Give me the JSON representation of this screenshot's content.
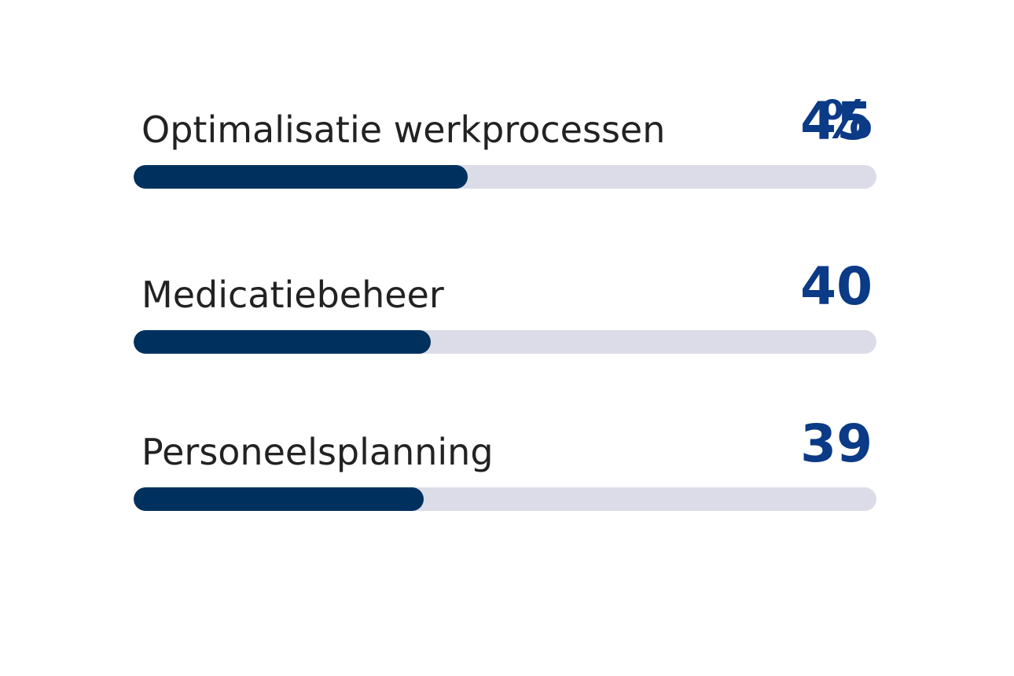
{
  "chart_data": {
    "type": "bar",
    "orientation": "horizontal",
    "unit": "%",
    "categories": [
      "Optimalisatie werkprocessen",
      "Medicatiebeheer",
      "Personeelsplanning"
    ],
    "values": [
      45,
      40,
      39
    ],
    "xlim": [
      0,
      100
    ],
    "grid": false,
    "colors": {
      "fill": "#00315e",
      "track": "#dcdce8",
      "value_text": "#0b3a86",
      "label_text": "#222222"
    }
  }
}
